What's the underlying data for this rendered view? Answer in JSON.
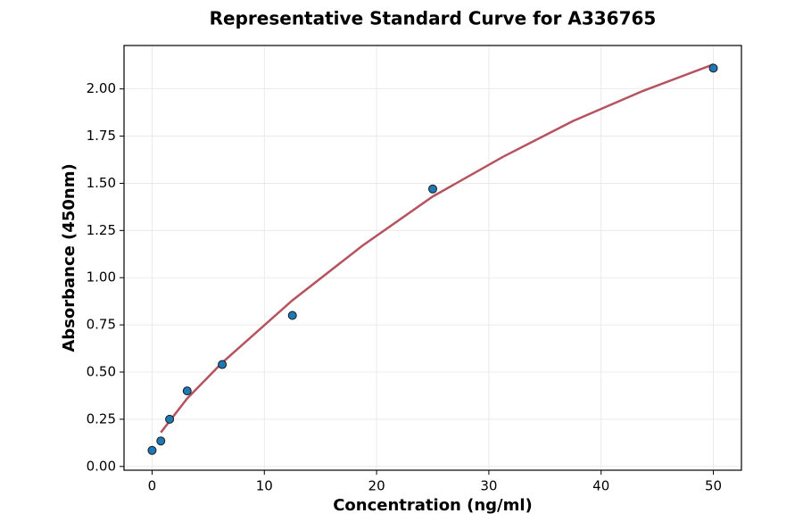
{
  "chart_data": {
    "type": "scatter",
    "title": "Representative Standard Curve for A336765",
    "x_label": "Concentration (ng/ml)",
    "y_label": "Absorbance (450nm)",
    "series": [
      {
        "style": "markers",
        "color": "#1f77b4",
        "x": [
          0,
          0.78,
          1.56,
          3.125,
          6.25,
          12.5,
          25,
          50
        ],
        "values": [
          0.085,
          0.135,
          0.25,
          0.4,
          0.54,
          0.8,
          1.47,
          2.11
        ]
      },
      {
        "style": "line",
        "color": "#b5535f",
        "x": [
          0.78,
          3.125,
          6.25,
          12.5,
          18.75,
          25,
          31.25,
          37.5,
          43.75,
          50
        ],
        "values": [
          0.18,
          0.36,
          0.55,
          0.88,
          1.17,
          1.43,
          1.64,
          1.83,
          1.99,
          2.13
        ]
      }
    ],
    "xlim": [
      -2.5,
      52.5
    ],
    "ylim": [
      -0.02,
      2.23
    ],
    "xticks": [
      0,
      10,
      20,
      30,
      40,
      50
    ],
    "yticks": [
      {
        "value": 0,
        "label": "0.00"
      },
      {
        "value": 0.25,
        "label": "0.25"
      },
      {
        "value": 0.5,
        "label": "0.50"
      },
      {
        "value": 0.75,
        "label": "0.75"
      },
      {
        "value": 1,
        "label": "1.00"
      },
      {
        "value": 1.25,
        "label": "1.25"
      },
      {
        "value": 1.5,
        "label": "1.50"
      },
      {
        "value": 1.75,
        "label": "1.75"
      },
      {
        "value": 2,
        "label": "2.00"
      }
    ],
    "grid": true
  }
}
